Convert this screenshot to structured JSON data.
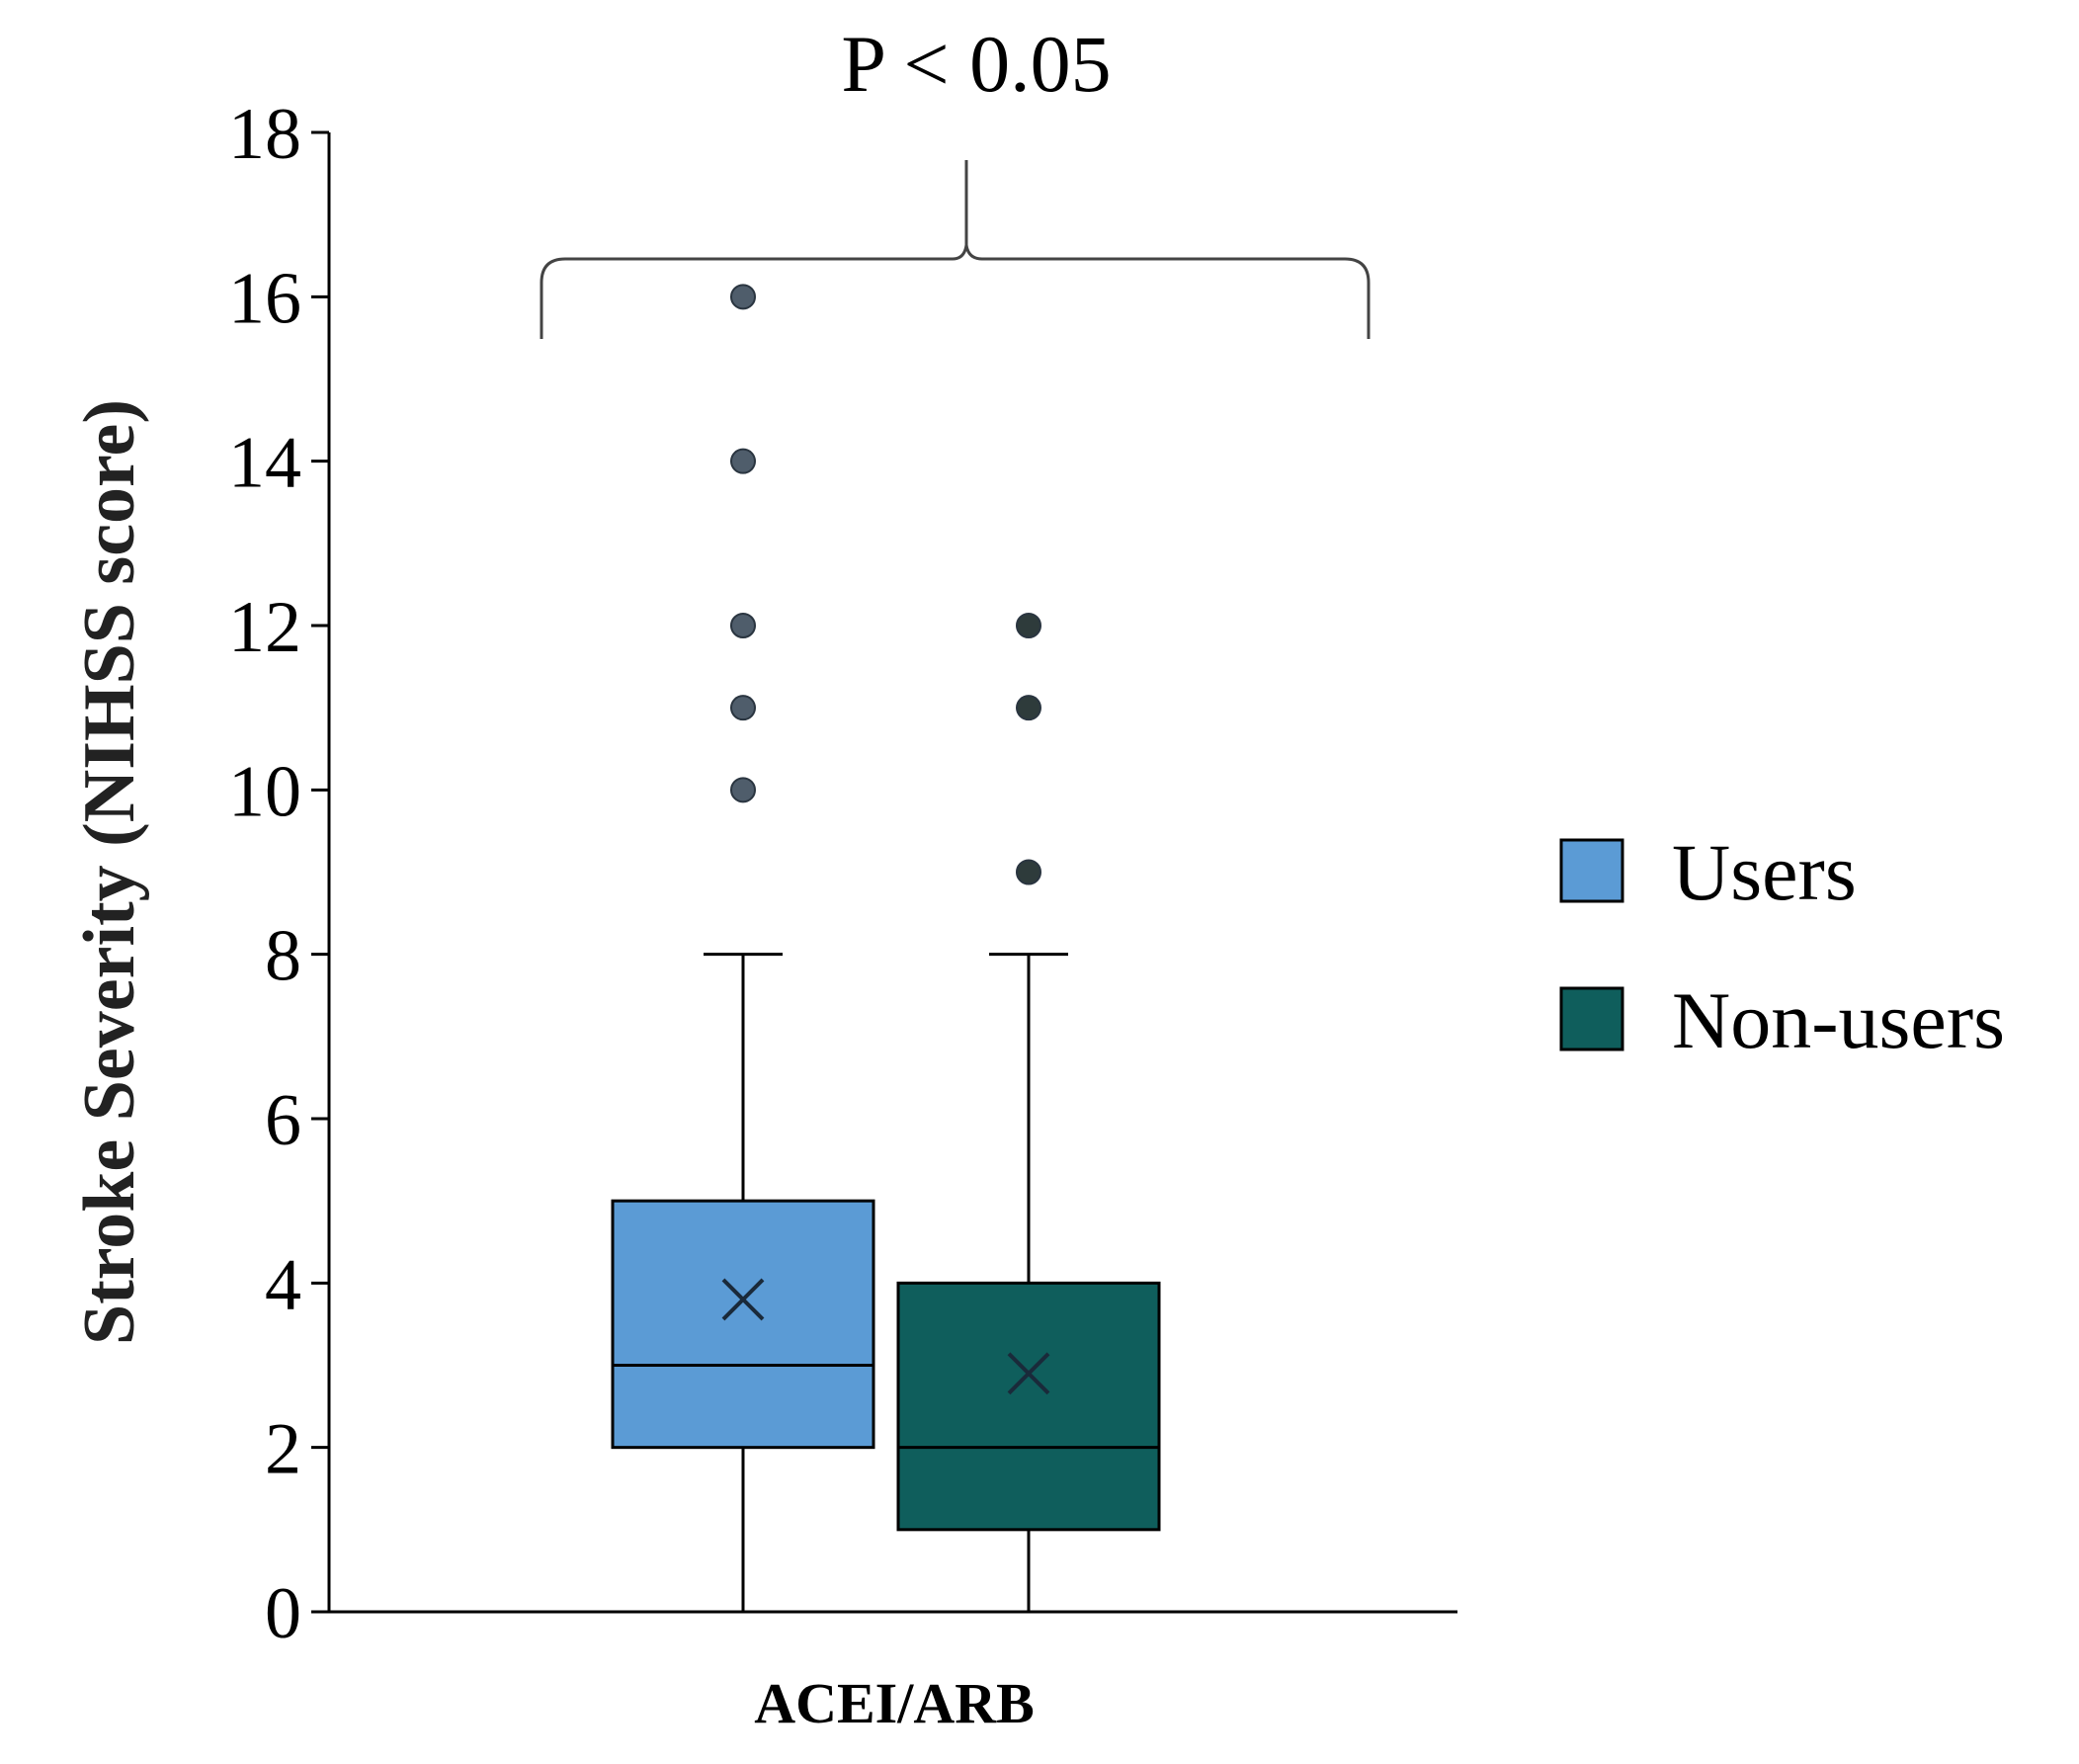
{
  "chart_data": {
    "type": "box",
    "title": "",
    "xlabel": "",
    "ylabel": "Stroke Severity (NIHSS score)",
    "ylim": [
      0,
      18
    ],
    "yticks": [
      0,
      2,
      4,
      6,
      8,
      10,
      12,
      14,
      16,
      18
    ],
    "grid": false,
    "legend_position": "right",
    "categories": [
      "ACEI/ARB"
    ],
    "series": [
      {
        "name": "Users",
        "color": "#5b9bd5",
        "min": 0,
        "q1": 2,
        "median": 3,
        "q3": 5,
        "max": 8,
        "mean": 3.8,
        "outliers": [
          10,
          11,
          12,
          14,
          16
        ]
      },
      {
        "name": "Non-users",
        "color": "#0f5e5c",
        "min": 0,
        "q1": 1,
        "median": 2,
        "q3": 4,
        "max": 8,
        "mean": 2.9,
        "outliers": [
          9,
          11,
          12
        ]
      }
    ],
    "annotation": "P < 0.05"
  }
}
